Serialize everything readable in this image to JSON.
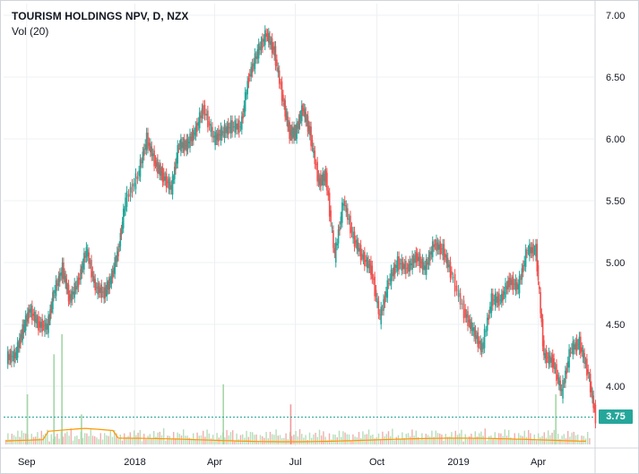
{
  "legend": {
    "title": "TOURISM HOLDINGS NPV, D, NZX",
    "volume": "Vol (20)"
  },
  "colors": {
    "up": "#26a69a",
    "down": "#ef5350",
    "volume_up": "#a5d6a7",
    "volume_down": "#ef9a9a",
    "volume_ma": "#ff9800",
    "last_price_line": "#26a69a"
  },
  "chart_data": {
    "type": "candlestick",
    "symbol": "TOURISM HOLDINGS NPV",
    "interval": "D",
    "exchange": "NZX",
    "indicator": "Vol (20)",
    "ylim": [
      3.7,
      7.05
    ],
    "y_ticks": [
      "7.00",
      "6.50",
      "6.00",
      "5.50",
      "5.00",
      "4.50",
      "4.00"
    ],
    "x_ticks": [
      "Sep",
      "2018",
      "Apr",
      "Jul",
      "Oct",
      "2019",
      "Apr"
    ],
    "x_range": [
      "2017-08-10",
      "2019-05-28"
    ],
    "last_price": "3.75",
    "grid": true,
    "series": [
      {
        "name": "Close",
        "x": [
          "2017-08-10",
          "2017-08-20",
          "2017-08-28",
          "2017-09-05",
          "2017-09-15",
          "2017-09-25",
          "2017-10-02",
          "2017-10-12",
          "2017-10-20",
          "2017-10-30",
          "2017-11-08",
          "2017-11-18",
          "2017-11-28",
          "2017-12-05",
          "2017-12-14",
          "2017-12-22",
          "2018-01-05",
          "2018-01-15",
          "2018-01-25",
          "2018-02-02",
          "2018-02-12",
          "2018-02-20",
          "2018-03-01",
          "2018-03-10",
          "2018-03-20",
          "2018-04-01",
          "2018-04-10",
          "2018-04-20",
          "2018-05-01",
          "2018-05-10",
          "2018-05-20",
          "2018-05-30",
          "2018-06-08",
          "2018-06-18",
          "2018-06-25",
          "2018-07-02",
          "2018-07-10",
          "2018-07-18",
          "2018-07-28",
          "2018-08-05",
          "2018-08-15",
          "2018-08-25",
          "2018-09-05",
          "2018-09-15",
          "2018-09-25",
          "2018-10-05",
          "2018-10-15",
          "2018-10-25",
          "2018-11-05",
          "2018-11-15",
          "2018-11-25",
          "2018-12-05",
          "2018-12-15",
          "2018-12-25",
          "2019-01-08",
          "2019-01-18",
          "2019-01-28",
          "2019-02-08",
          "2019-02-18",
          "2019-02-28",
          "2019-03-10",
          "2019-03-20",
          "2019-03-30",
          "2019-04-08",
          "2019-04-18",
          "2019-04-28",
          "2019-05-08",
          "2019-05-18",
          "2019-05-28"
        ],
        "values": [
          4.25,
          4.45,
          4.62,
          4.5,
          4.48,
          4.75,
          4.95,
          4.7,
          4.85,
          5.1,
          4.8,
          4.75,
          4.85,
          5.1,
          5.5,
          5.7,
          6.0,
          5.8,
          5.7,
          5.6,
          5.95,
          5.95,
          6.05,
          6.25,
          6.0,
          6.05,
          6.1,
          6.1,
          6.5,
          6.7,
          6.85,
          6.7,
          6.3,
          6.05,
          6.05,
          6.25,
          6.05,
          5.65,
          5.7,
          5.05,
          5.5,
          5.2,
          5.05,
          4.95,
          4.55,
          4.85,
          5.0,
          4.95,
          5.05,
          4.95,
          5.15,
          5.1,
          4.9,
          4.6,
          4.45,
          4.3,
          4.7,
          4.7,
          4.85,
          4.8,
          5.1,
          5.1,
          4.25,
          4.2,
          3.95,
          4.3,
          4.35,
          4.1,
          3.75
        ]
      },
      {
        "name": "Volume",
        "x": [
          "2017-09-01",
          "2017-10-01",
          "2017-10-10",
          "2017-11-01",
          "2018-04-10",
          "2018-06-25",
          "2019-04-20"
        ],
        "values": [
          2000000,
          3600000,
          4400000,
          1200000,
          2400000,
          1600000,
          2000000
        ]
      }
    ]
  }
}
